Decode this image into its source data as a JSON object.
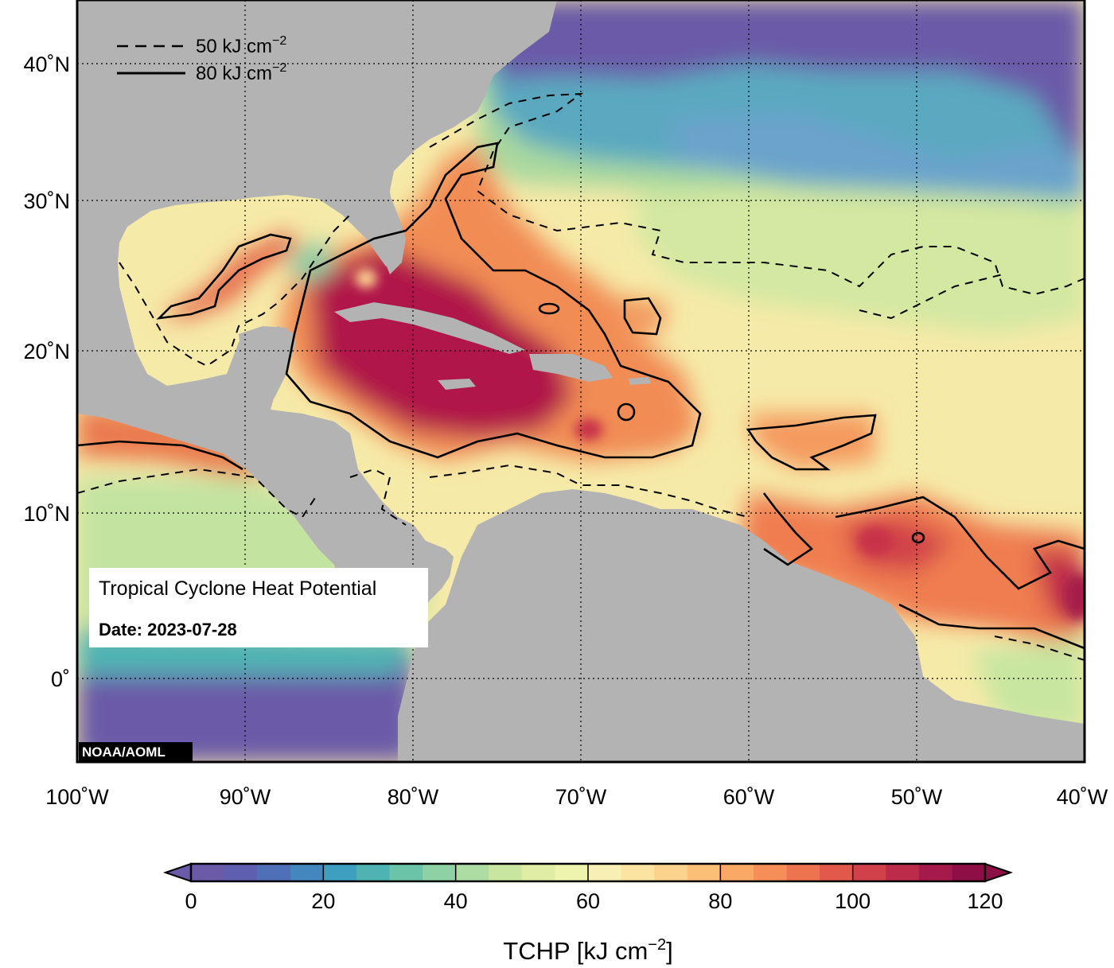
{
  "map": {
    "info_title": "Tropical Cyclone Heat Potential",
    "info_date_label": "Date:",
    "info_date_value": "2023-07-28",
    "credit": "NOAA/AOML",
    "colors": {
      "land": "#b3b3b3",
      "cold": "#6a5aa8",
      "contour": "#000000"
    },
    "regions_shown": [
      "Gulf of Mexico",
      "Caribbean Sea",
      "North Atlantic",
      "Tropical Atlantic"
    ]
  },
  "legend": {
    "dashed": {
      "value": "50 kJ cm",
      "exponent": "−2"
    },
    "solid": {
      "value": "80 kJ cm",
      "exponent": "−2"
    }
  },
  "axes": {
    "x_ticks": [
      "100˚W",
      "90˚W",
      "80˚W",
      "70˚W",
      "60˚W",
      "50˚W",
      "40˚W"
    ],
    "y_ticks": [
      "40˚N",
      "30˚N",
      "20˚N",
      "10˚N",
      "0˚"
    ]
  },
  "colorbar": {
    "title_prefix": "TCHP [kJ cm",
    "title_exponent": "−2",
    "title_suffix": "]",
    "ticks": [
      "0",
      "20",
      "40",
      "60",
      "80",
      "100",
      "120"
    ],
    "range": [
      0,
      120
    ],
    "step": 5,
    "colors": [
      "#6a5aa8",
      "#5f5fb0",
      "#4f6fb8",
      "#4487bf",
      "#3f9fc0",
      "#4fb3b3",
      "#6cc4a8",
      "#8dd1a4",
      "#addda2",
      "#c8e6a0",
      "#dfeea4",
      "#eef3ad",
      "#f7f0b4",
      "#fbe3a2",
      "#fcd38d",
      "#fbbf78",
      "#f9a866",
      "#f58e58",
      "#ee734f",
      "#e2594b",
      "#d1414a",
      "#bc2b49",
      "#a51a4a",
      "#8e0e46"
    ]
  }
}
